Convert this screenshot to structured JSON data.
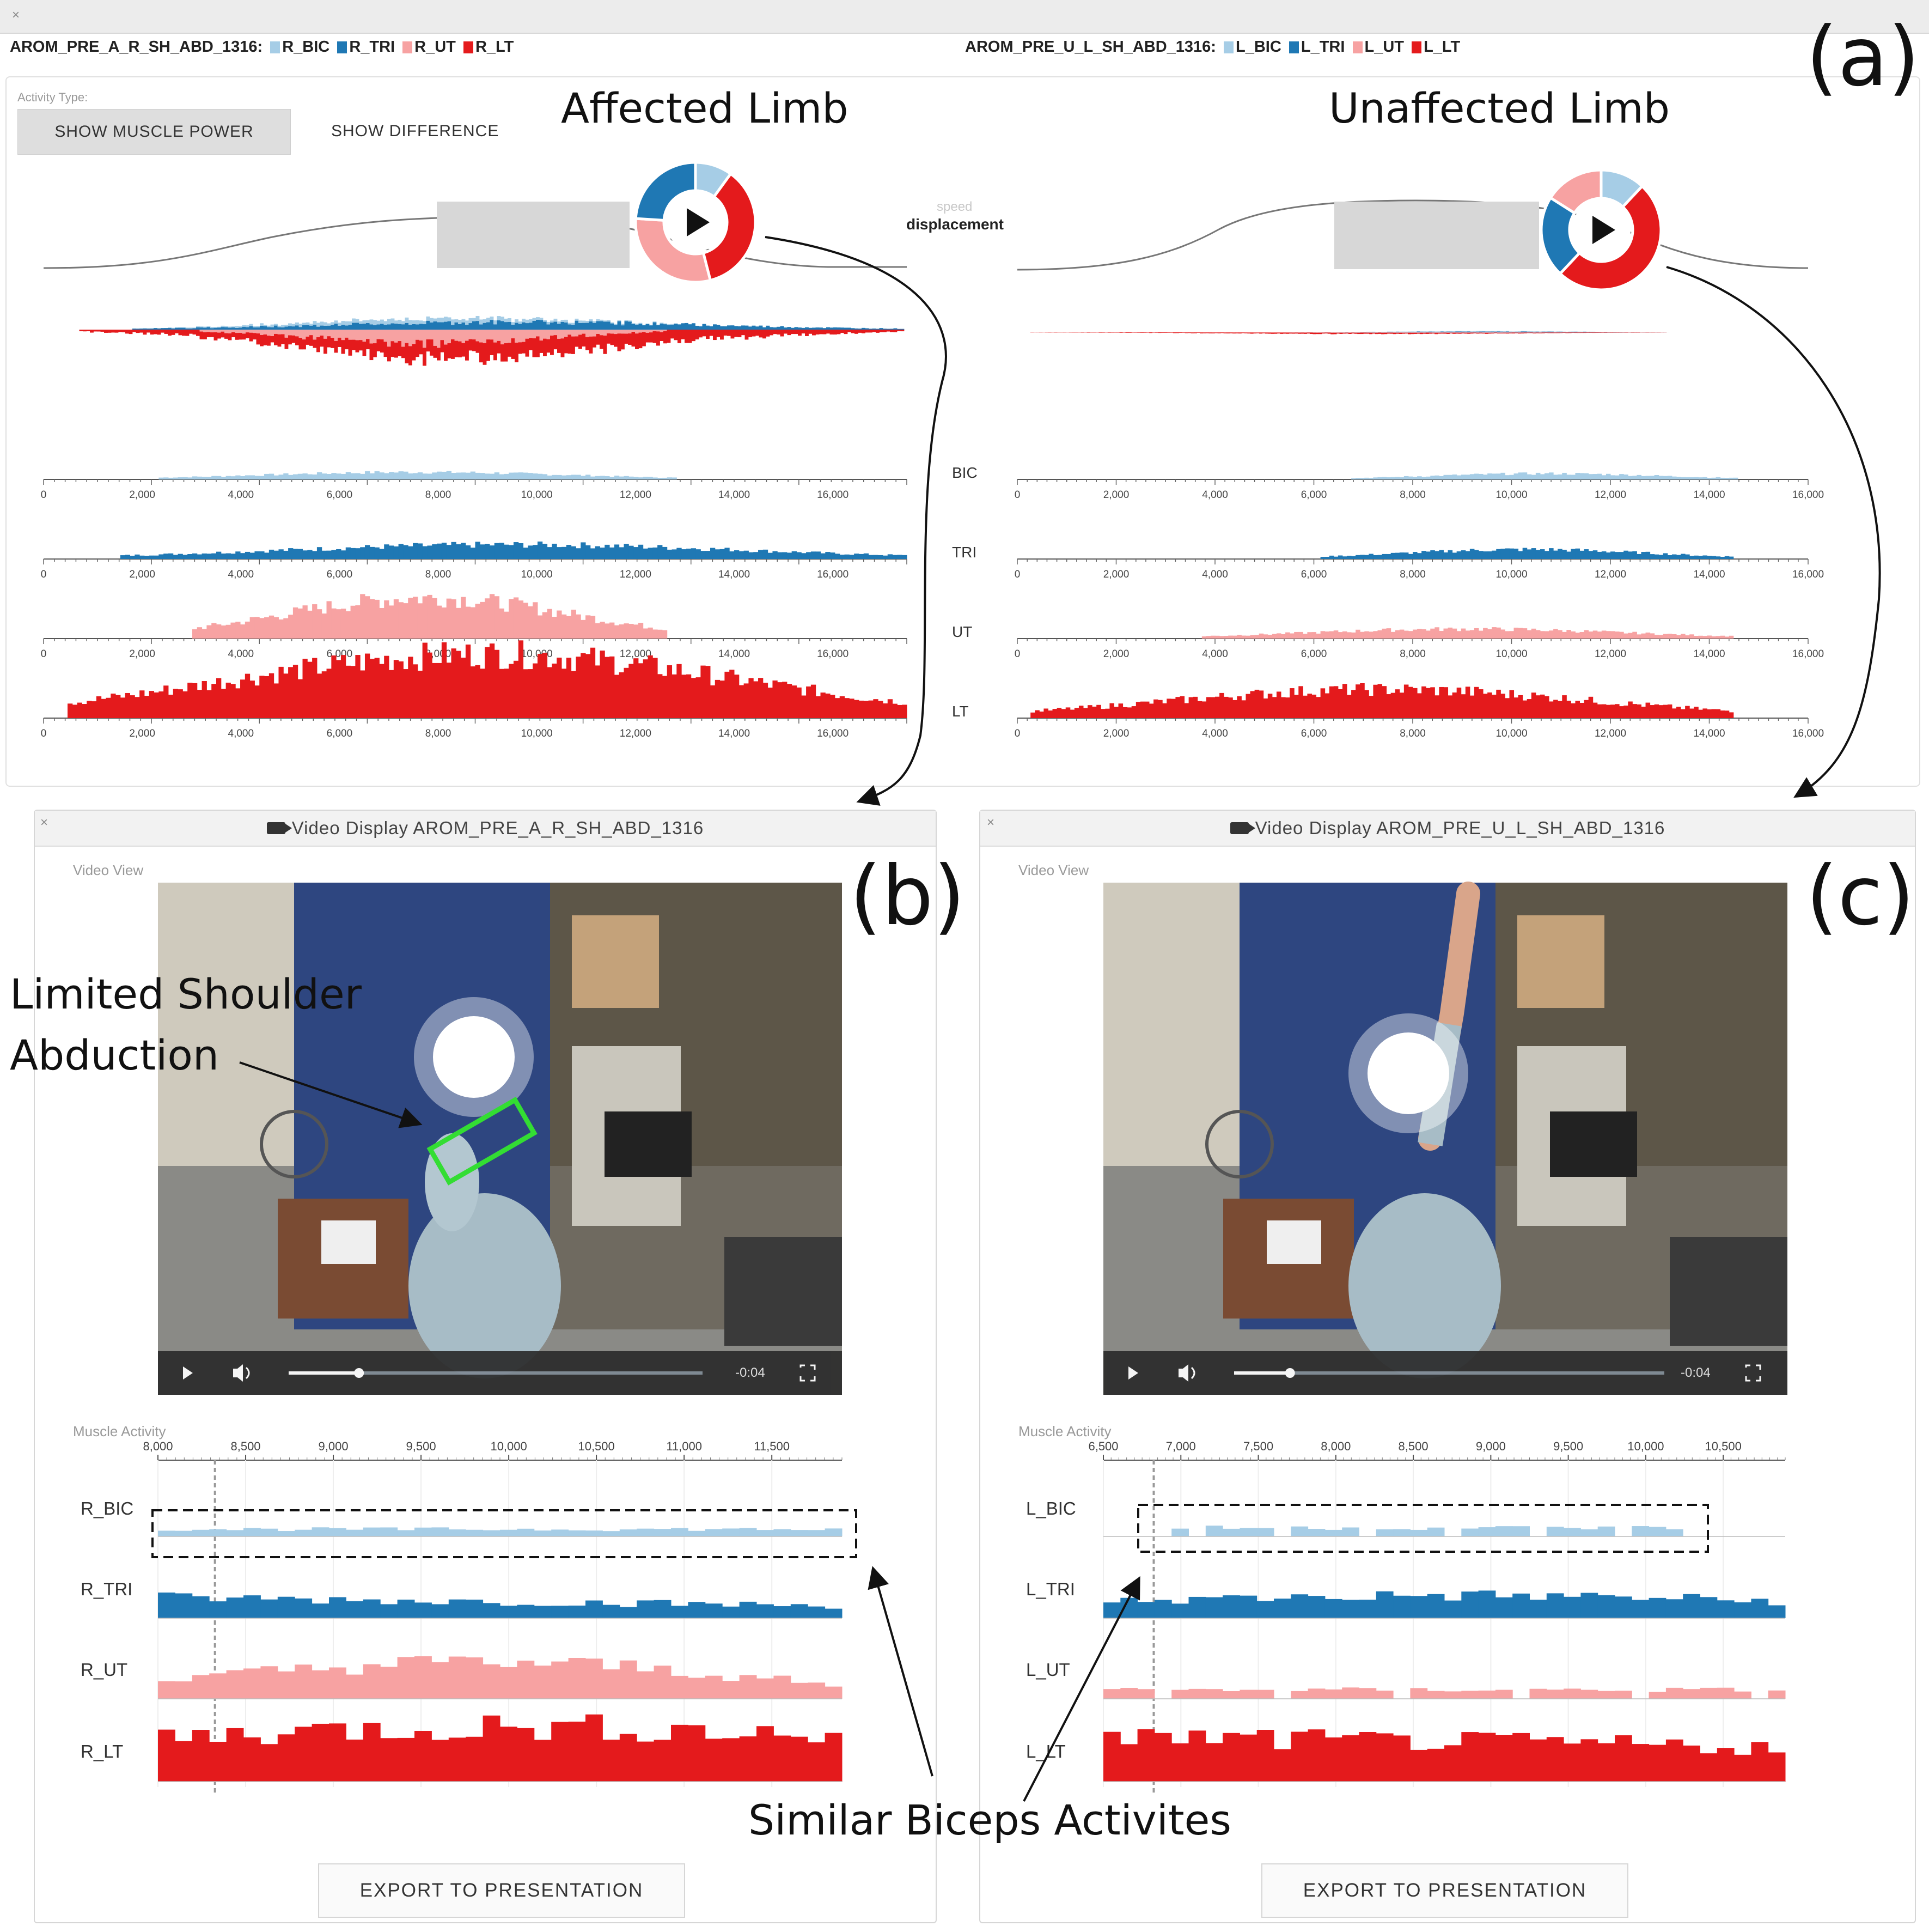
{
  "top_bar": {
    "close_icon": "×",
    "left_session": "AROM_PRE_A_R_SH_ABD_1316:",
    "right_session": "AROM_PRE_U_L_SH_ABD_1316:",
    "left_legend": [
      {
        "label": "R_BIC",
        "color": "#a6cde6"
      },
      {
        "label": "R_TRI",
        "color": "#1f78b4"
      },
      {
        "label": "R_UT",
        "color": "#f7a2a2"
      },
      {
        "label": "R_LT",
        "color": "#e41a1c"
      }
    ],
    "right_legend": [
      {
        "label": "L_BIC",
        "color": "#a6cde6"
      },
      {
        "label": "L_TRI",
        "color": "#1f78b4"
      },
      {
        "label": "L_UT",
        "color": "#f7a2a2"
      },
      {
        "label": "L_LT",
        "color": "#e41a1c"
      }
    ]
  },
  "panel_tags": {
    "a": "(a)",
    "b": "(b)",
    "c": "(c)"
  },
  "overview": {
    "activity_type_label": "Activity Type:",
    "btn_show_power": "SHOW MUSCLE POWER",
    "btn_show_difference": "SHOW DIFFERENCE",
    "affected_title": "Affected Limb",
    "unaffected_title": "Unaffected Limb",
    "metric_speed": "speed",
    "metric_displacement": "displacement",
    "muscle_labels": [
      "BIC",
      "TRI",
      "UT",
      "LT"
    ],
    "left_ticks": [
      "0",
      "2,000",
      "4,000",
      "6,000",
      "8,000",
      "10,000",
      "12,000",
      "14,000",
      "16,000"
    ],
    "right_ticks": [
      "0",
      "2,000",
      "4,000",
      "6,000",
      "8,000",
      "10,000",
      "12,000",
      "14,000",
      "16,000"
    ],
    "left_donut": [
      {
        "muscle": "BIC",
        "share": 0.1,
        "color": "#a6cde6"
      },
      {
        "muscle": "LT",
        "share": 0.36,
        "color": "#e41a1c"
      },
      {
        "muscle": "UT",
        "share": 0.3,
        "color": "#f7a2a2"
      },
      {
        "muscle": "TRI",
        "share": 0.24,
        "color": "#1f78b4"
      }
    ],
    "right_donut": [
      {
        "muscle": "BIC",
        "share": 0.12,
        "color": "#a6cde6"
      },
      {
        "muscle": "LT",
        "share": 0.5,
        "color": "#e41a1c"
      },
      {
        "muscle": "TRI",
        "share": 0.22,
        "color": "#1f78b4"
      },
      {
        "muscle": "UT",
        "share": 0.16,
        "color": "#f7a2a2"
      }
    ],
    "play_icon": "play-icon"
  },
  "video_b": {
    "title": "Video Display AROM_PRE_A_R_SH_ABD_1316",
    "video_view_label": "Video View",
    "time_remaining": "-0:04",
    "progress": 0.17,
    "muscle_activity_label": "Muscle Activity",
    "ticks": [
      "8,000",
      "8,500",
      "9,000",
      "9,500",
      "10,000",
      "10,500",
      "11,000",
      "11,500"
    ],
    "rows": [
      "R_BIC",
      "R_TRI",
      "R_UT",
      "R_LT"
    ],
    "export_label": "EXPORT TO PRESENTATION"
  },
  "video_c": {
    "title": "Video Display AROM_PRE_U_L_SH_ABD_1316",
    "video_view_label": "Video View",
    "time_remaining": "-0:04",
    "progress": 0.13,
    "muscle_activity_label": "Muscle Activity",
    "ticks": [
      "6,500",
      "7,000",
      "7,500",
      "8,000",
      "8,500",
      "9,000",
      "9,500",
      "10,000",
      "10,500"
    ],
    "rows": [
      "L_BIC",
      "L_TRI",
      "L_UT",
      "L_LT"
    ],
    "export_label": "EXPORT TO PRESENTATION"
  },
  "annotations": {
    "limited_line1": "Limited Shoulder",
    "limited_line2": "Abduction",
    "similar_biceps": "Similar Biceps Activites"
  },
  "chart_data": [
    {
      "type": "bar",
      "title": "Affected Limb",
      "x_range": [
        0,
        17500
      ],
      "series": [
        {
          "name": "BIC",
          "color": "#a6cde6",
          "peak": 0.25,
          "start": 2300,
          "end": 12800
        },
        {
          "name": "TRI",
          "color": "#1f78b4",
          "peak": 0.45,
          "start": 1600,
          "end": 17500
        },
        {
          "name": "UT",
          "color": "#f7a2a2",
          "peak": 0.85,
          "start": 3000,
          "end": 12600
        },
        {
          "name": "LT",
          "color": "#e41a1c",
          "peak": 1.0,
          "start": 500,
          "end": 17500
        }
      ]
    },
    {
      "type": "bar",
      "title": "Unaffected Limb",
      "x_range": [
        0,
        16000
      ],
      "series": [
        {
          "name": "BIC",
          "color": "#a6cde6",
          "peak": 0.2,
          "start": 6800,
          "end": 14600
        },
        {
          "name": "TRI",
          "color": "#1f78b4",
          "peak": 0.3,
          "start": 6100,
          "end": 14500
        },
        {
          "name": "UT",
          "color": "#f7a2a2",
          "peak": 0.2,
          "start": 3700,
          "end": 14500
        },
        {
          "name": "LT",
          "color": "#e41a1c",
          "peak": 0.45,
          "start": 300,
          "end": 14500
        }
      ]
    }
  ]
}
